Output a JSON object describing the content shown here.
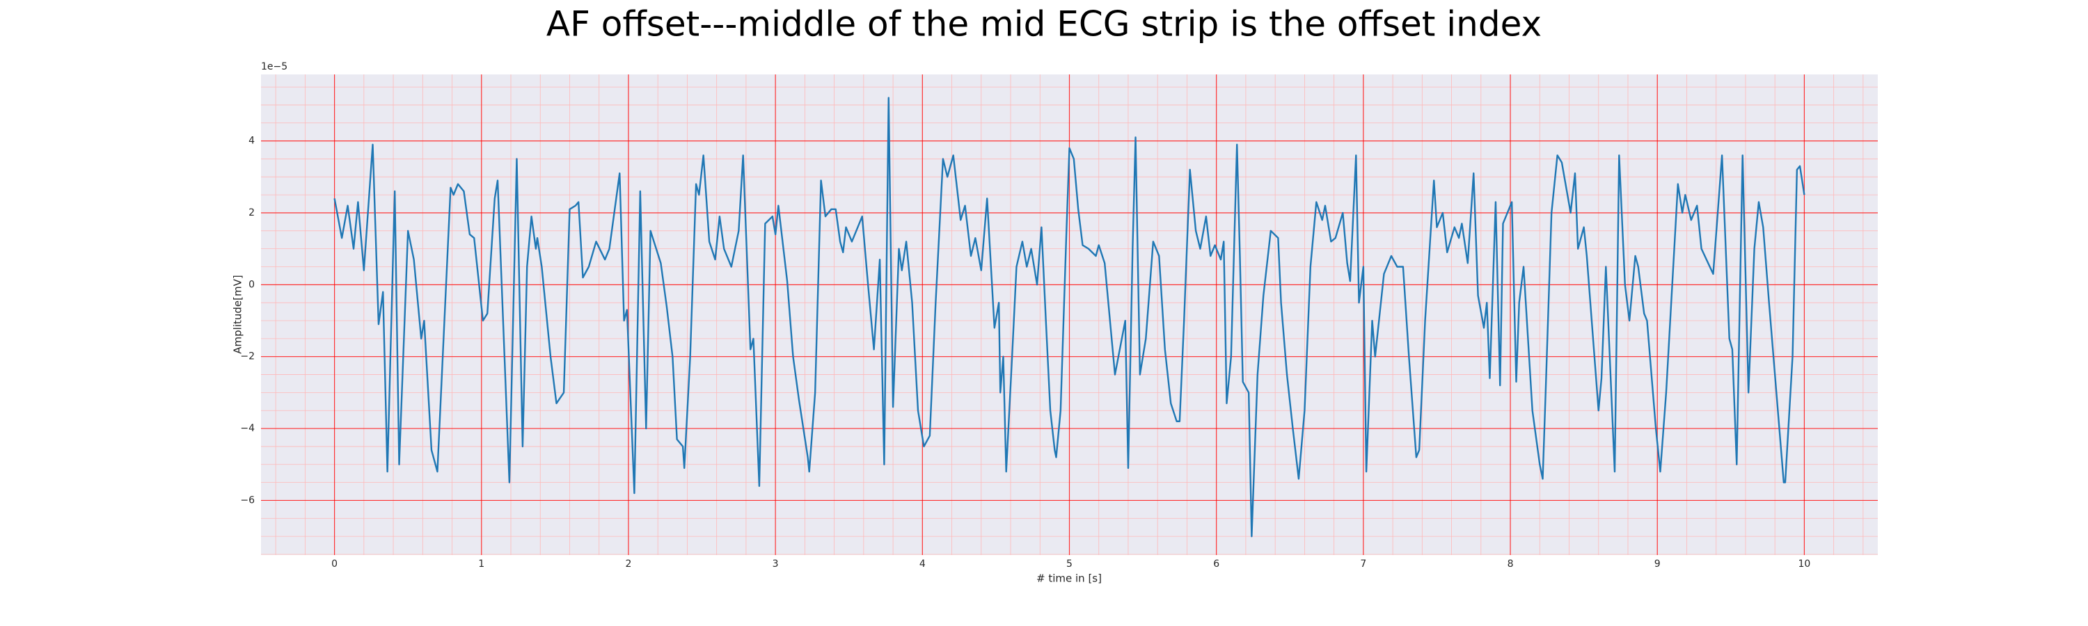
{
  "chart_data": {
    "type": "line",
    "title": "AF offset---middle of the mid ECG strip is the offset index",
    "x_label": "# time in [s]",
    "y_label": "Amplitude[mV]",
    "y_offset_label": "1e−5",
    "color": "#1f77b4",
    "facecolor": "#eaeaf2",
    "grid": true,
    "grid_color": "#ff0000",
    "minor_grid": true,
    "minor_grid_color": "#ffb8b8",
    "minor_divisions": {
      "x": 5,
      "y": 4
    },
    "xlim": [
      -0.5,
      10.5
    ],
    "ylim": [
      -7.52,
      5.85
    ],
    "xticks": [
      0,
      1,
      2,
      3,
      4,
      5,
      6,
      7,
      8,
      9,
      10
    ],
    "yticks": [
      {
        "value": -6,
        "label": "−6"
      },
      {
        "value": -4,
        "label": "−4"
      },
      {
        "value": -2,
        "label": "−2"
      },
      0,
      2,
      4
    ],
    "x": [
      0.0,
      0.05,
      0.09,
      0.13,
      0.16,
      0.2,
      0.26,
      0.3,
      0.33,
      0.36,
      0.41,
      0.44,
      0.5,
      0.54,
      0.59,
      0.61,
      0.66,
      0.7,
      0.79,
      0.81,
      0.84,
      0.88,
      0.92,
      0.95,
      1.01,
      1.04,
      1.09,
      1.11,
      1.19,
      1.24,
      1.28,
      1.31,
      1.34,
      1.37,
      1.38,
      1.41,
      1.47,
      1.51,
      1.56,
      1.6,
      1.64,
      1.66,
      1.69,
      1.73,
      1.78,
      1.84,
      1.87,
      1.94,
      1.97,
      1.99,
      2.04,
      2.08,
      2.12,
      2.15,
      2.22,
      2.26,
      2.3,
      2.33,
      2.37,
      2.38,
      2.42,
      2.46,
      2.48,
      2.51,
      2.55,
      2.59,
      2.62,
      2.65,
      2.7,
      2.75,
      2.78,
      2.83,
      2.85,
      2.89,
      2.93,
      2.98,
      3.0,
      3.02,
      3.08,
      3.12,
      3.16,
      3.19,
      3.22,
      3.23,
      3.27,
      3.31,
      3.34,
      3.38,
      3.41,
      3.44,
      3.46,
      3.48,
      3.52,
      3.59,
      3.63,
      3.67,
      3.71,
      3.74,
      3.77,
      3.8,
      3.84,
      3.86,
      3.89,
      3.93,
      3.97,
      4.01,
      4.05,
      4.09,
      4.14,
      4.17,
      4.21,
      4.26,
      4.29,
      4.33,
      4.36,
      4.4,
      4.44,
      4.49,
      4.52,
      4.53,
      4.55,
      4.57,
      4.61,
      4.64,
      4.68,
      4.71,
      4.74,
      4.78,
      4.81,
      4.84,
      4.87,
      4.9,
      4.91,
      4.94,
      4.98,
      5.0,
      5.03,
      5.06,
      5.09,
      5.13,
      5.18,
      5.2,
      5.24,
      5.31,
      5.38,
      5.4,
      5.43,
      5.45,
      5.48,
      5.52,
      5.57,
      5.61,
      5.65,
      5.69,
      5.73,
      5.75,
      5.78,
      5.82,
      5.86,
      5.89,
      5.93,
      5.96,
      5.99,
      6.03,
      6.05,
      6.07,
      6.1,
      6.14,
      6.16,
      6.18,
      6.22,
      6.24,
      6.28,
      6.32,
      6.37,
      6.42,
      6.44,
      6.48,
      6.52,
      6.56,
      6.6,
      6.64,
      6.68,
      6.72,
      6.74,
      6.78,
      6.81,
      6.86,
      6.89,
      6.91,
      6.95,
      6.97,
      7.0,
      7.02,
      7.06,
      7.08,
      7.14,
      7.19,
      7.23,
      7.27,
      7.31,
      7.36,
      7.38,
      7.42,
      7.48,
      7.5,
      7.54,
      7.57,
      7.62,
      7.65,
      7.67,
      7.71,
      7.75,
      7.78,
      7.82,
      7.84,
      7.86,
      7.9,
      7.93,
      7.95,
      8.01,
      8.04,
      8.06,
      8.09,
      8.12,
      8.15,
      8.2,
      8.22,
      8.24,
      8.28,
      8.32,
      8.35,
      8.41,
      8.44,
      8.46,
      8.5,
      8.52,
      8.6,
      8.62,
      8.65,
      8.71,
      8.74,
      8.78,
      8.81,
      8.85,
      8.87,
      8.91,
      8.93,
      8.99,
      9.02,
      9.06,
      9.14,
      9.17,
      9.19,
      9.23,
      9.27,
      9.3,
      9.38,
      9.44,
      9.49,
      9.51,
      9.54,
      9.58,
      9.62,
      9.66,
      9.69,
      9.72,
      9.76,
      9.82,
      9.86,
      9.87,
      9.92,
      9.95,
      9.97,
      10.0
    ],
    "values": [
      2.4,
      1.3,
      2.2,
      1.0,
      2.3,
      0.4,
      3.9,
      -1.1,
      -0.2,
      -5.2,
      2.6,
      -5.0,
      1.5,
      0.7,
      -1.5,
      -1.0,
      -4.6,
      -5.2,
      2.7,
      2.5,
      2.8,
      2.6,
      1.4,
      1.3,
      -1.0,
      -0.8,
      2.4,
      2.9,
      -5.5,
      3.5,
      -4.5,
      0.5,
      1.9,
      1.0,
      1.3,
      0.5,
      -2.0,
      -3.3,
      -3.0,
      2.1,
      2.2,
      2.3,
      0.2,
      0.5,
      1.2,
      0.7,
      1.0,
      3.1,
      -1.0,
      -0.7,
      -5.8,
      2.6,
      -4.0,
      1.5,
      0.6,
      -0.6,
      -2.0,
      -4.3,
      -4.5,
      -5.1,
      -2.0,
      2.8,
      2.5,
      3.6,
      1.2,
      0.7,
      1.9,
      1.0,
      0.5,
      1.5,
      3.6,
      -1.8,
      -1.5,
      -5.6,
      1.7,
      1.9,
      1.4,
      2.2,
      0.1,
      -2.0,
      -3.2,
      -4.0,
      -4.8,
      -5.2,
      -3.0,
      2.9,
      1.9,
      2.1,
      2.1,
      1.2,
      0.9,
      1.6,
      1.2,
      1.9,
      0.0,
      -1.8,
      0.7,
      -5.0,
      5.2,
      -3.4,
      1.0,
      0.4,
      1.2,
      -0.5,
      -3.5,
      -4.5,
      -4.2,
      -0.5,
      3.5,
      3.0,
      3.6,
      1.8,
      2.2,
      0.8,
      1.3,
      0.4,
      2.4,
      -1.2,
      -0.5,
      -3.0,
      -2.0,
      -5.2,
      -2.0,
      0.5,
      1.2,
      0.5,
      1.0,
      0.0,
      1.6,
      -1.0,
      -3.5,
      -4.6,
      -4.8,
      -3.5,
      1.5,
      3.8,
      3.5,
      2.1,
      1.1,
      1.0,
      0.8,
      1.1,
      0.6,
      -2.5,
      -1.0,
      -5.1,
      1.0,
      4.1,
      -2.5,
      -1.5,
      1.2,
      0.8,
      -1.8,
      -3.3,
      -3.8,
      -3.8,
      -1.0,
      3.2,
      1.5,
      1.0,
      1.9,
      0.8,
      1.1,
      0.7,
      1.2,
      -3.3,
      -2.0,
      3.9,
      0.8,
      -2.7,
      -3.0,
      -7.0,
      -2.5,
      -0.3,
      1.5,
      1.3,
      -0.5,
      -2.5,
      -4.0,
      -5.4,
      -3.5,
      0.5,
      2.3,
      1.8,
      2.2,
      1.2,
      1.3,
      2.0,
      0.6,
      0.1,
      3.6,
      -0.5,
      0.5,
      -5.2,
      -1.0,
      -2.0,
      0.3,
      0.8,
      0.5,
      0.5,
      -2.0,
      -4.8,
      -4.6,
      -1.0,
      2.9,
      1.6,
      2.0,
      0.9,
      1.6,
      1.3,
      1.7,
      0.6,
      3.1,
      -0.3,
      -1.2,
      -0.5,
      -2.6,
      2.3,
      -2.8,
      1.7,
      2.3,
      -2.7,
      -0.5,
      0.5,
      -1.5,
      -3.5,
      -5.0,
      -5.4,
      -3.0,
      2.0,
      3.6,
      3.4,
      2.0,
      3.1,
      1.0,
      1.6,
      0.8,
      -3.5,
      -2.6,
      0.5,
      -5.2,
      3.6,
      0.0,
      -1.0,
      0.8,
      0.5,
      -0.8,
      -1.0,
      -4.0,
      -5.2,
      -3.0,
      2.8,
      2.0,
      2.5,
      1.8,
      2.2,
      1.0,
      0.3,
      3.6,
      -1.5,
      -1.8,
      -5.0,
      3.6,
      -3.0,
      1.0,
      2.3,
      1.6,
      -0.5,
      -3.5,
      -5.5,
      -5.5,
      -2.0,
      3.2,
      3.3,
      2.5
    ]
  }
}
